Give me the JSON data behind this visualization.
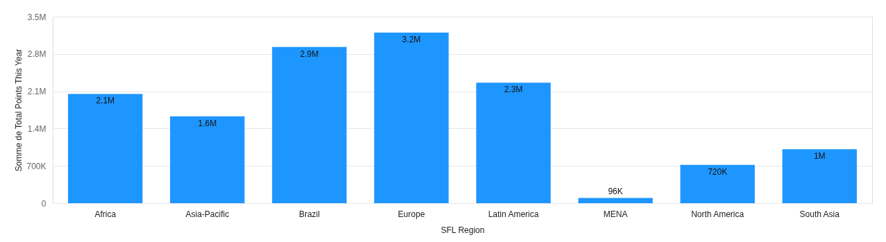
{
  "chart_data": {
    "type": "bar",
    "xlabel": "SFL Region",
    "ylabel": "Somme de Total Points This Year",
    "categories": [
      "Africa",
      "Asia-Pacific",
      "Brazil",
      "Europe",
      "Latin America",
      "MENA",
      "North America",
      "South Asia"
    ],
    "values": [
      2050000,
      1630000,
      2930000,
      3200000,
      2260000,
      96000,
      720000,
      1010000
    ],
    "value_labels": [
      "2.1M",
      "1.6M",
      "2.9M",
      "3.2M",
      "2.3M",
      "96K",
      "720K",
      "1M"
    ],
    "color": "#1e96ff",
    "ylim": [
      0,
      3500000
    ],
    "yticks": [
      0,
      {
        "value": 700000,
        "label": "700K"
      },
      {
        "value": 1400000,
        "label": "1.4M"
      },
      {
        "value": 2100000,
        "label": "2.1M"
      },
      {
        "value": 2800000,
        "label": "2.8M"
      },
      {
        "value": 3500000,
        "label": "3.5M"
      }
    ],
    "grid": "y"
  }
}
